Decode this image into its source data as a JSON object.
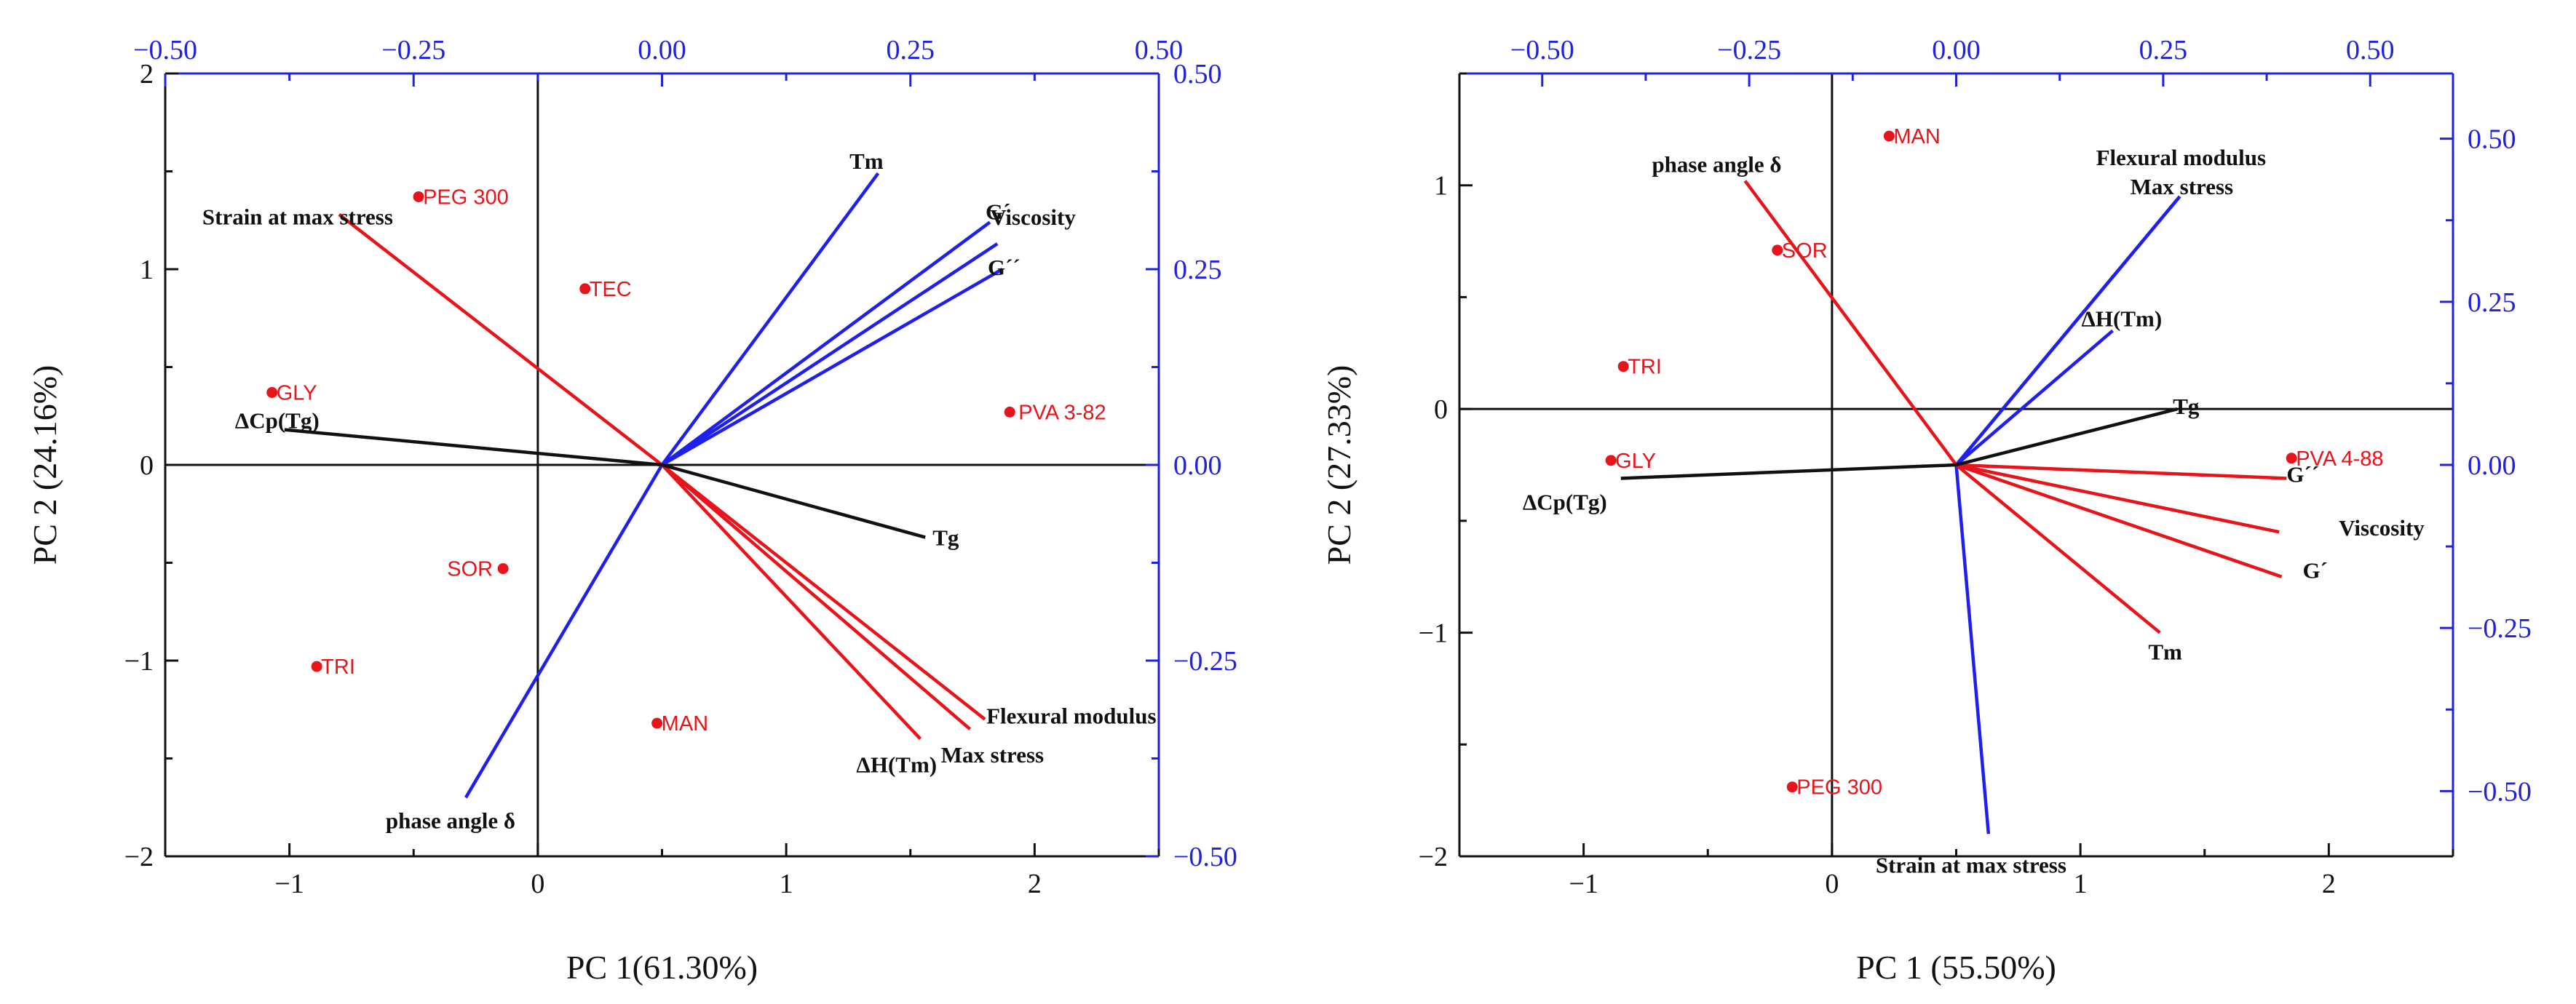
{
  "chart_data": [
    {
      "type": "scatter",
      "subtype": "pca-biplot",
      "xlabel": "PC 1(61.30%)",
      "ylabel": "PC 2 (24.16%)",
      "xlim": [
        -1.5,
        2.5
      ],
      "ylim": [
        -2,
        2
      ],
      "xticks": [
        -1,
        0,
        1,
        2
      ],
      "xtick_labels": [
        "−1",
        "0",
        "1",
        "2"
      ],
      "yticks": [
        -2,
        -1,
        0,
        1,
        2
      ],
      "ytick_labels": [
        "−2",
        "−1",
        "0",
        "1",
        "2"
      ],
      "top_axis": {
        "lim": [
          -0.5,
          0.5
        ],
        "ticks": [
          -0.5,
          -0.25,
          0,
          0.25,
          0.5
        ],
        "tick_labels": [
          "−0.50",
          "−0.25",
          "0.00",
          "0.25",
          "0.50"
        ]
      },
      "right_axis": {
        "lim": [
          -0.5,
          0.5
        ],
        "ticks": [
          -0.5,
          -0.25,
          0,
          0.25,
          0.5
        ],
        "tick_labels": [
          "−0.50",
          "−0.25",
          "0.00",
          "0.25",
          "0.50"
        ]
      },
      "vector_origin": [
        0.5,
        0.0
      ],
      "points": [
        {
          "label": "PEG 300",
          "x": -0.48,
          "y": 1.37
        },
        {
          "label": "TEC",
          "x": 0.19,
          "y": 0.9
        },
        {
          "label": "GLY",
          "x": -1.07,
          "y": 0.37
        },
        {
          "label": "PVA 3-82",
          "x": 1.9,
          "y": 0.27
        },
        {
          "label": "SOR",
          "x": -0.14,
          "y": -0.53
        },
        {
          "label": "TRI",
          "x": -0.89,
          "y": -1.03
        },
        {
          "label": "MAN",
          "x": 0.48,
          "y": -1.32
        }
      ],
      "vectors": [
        {
          "label": "Tm",
          "x": 1.37,
          "y": 1.49,
          "color": "blue"
        },
        {
          "label": "G´",
          "x": 1.82,
          "y": 1.24,
          "color": "blue"
        },
        {
          "label": "Viscosity",
          "x": 1.85,
          "y": 1.13,
          "color": "blue"
        },
        {
          "label": "G´´",
          "x": 1.87,
          "y": 1.0,
          "color": "blue"
        },
        {
          "label": "phase angle δ",
          "x": -0.29,
          "y": -1.7,
          "color": "blue"
        },
        {
          "label": "Strain at max stress",
          "x": -0.8,
          "y": 1.28,
          "color": "red"
        },
        {
          "label": "Flexural modulus",
          "x": 1.8,
          "y": -1.3,
          "color": "red"
        },
        {
          "label": "Max stress",
          "x": 1.74,
          "y": -1.35,
          "color": "red"
        },
        {
          "label": "ΔH(Tm)",
          "x": 1.54,
          "y": -1.4,
          "color": "red"
        },
        {
          "label": "ΔCp(Tg)",
          "x": -1.02,
          "y": 0.18,
          "color": "black"
        },
        {
          "label": "Tg",
          "x": 1.56,
          "y": -0.37,
          "color": "black"
        }
      ]
    },
    {
      "type": "scatter",
      "subtype": "pca-biplot",
      "xlabel": "PC 1 (55.50%)",
      "ylabel": "PC 2 (27.33%)",
      "xlim": [
        -1.5,
        2.5
      ],
      "ylim": [
        -2,
        1.5
      ],
      "xticks": [
        -1,
        0,
        1,
        2
      ],
      "xtick_labels": [
        "−1",
        "0",
        "1",
        "2"
      ],
      "yticks": [
        -2,
        -1,
        0,
        1
      ],
      "ytick_labels": [
        "−2",
        "−1",
        "0",
        "1"
      ],
      "top_axis": {
        "lim": [
          -0.6,
          0.6
        ],
        "ticks": [
          -0.5,
          -0.25,
          0,
          0.25,
          0.5
        ],
        "tick_labels": [
          "−0.50",
          "−0.25",
          "0.00",
          "0.25",
          "0.50"
        ]
      },
      "right_axis": {
        "lim": [
          -0.6,
          0.6
        ],
        "ticks": [
          -0.5,
          -0.25,
          0,
          0.25,
          0.5
        ],
        "tick_labels": [
          "−0.50",
          "−0.25",
          "0.00",
          "0.25",
          "0.50"
        ]
      },
      "vector_origin": [
        0.5,
        -0.25
      ],
      "points": [
        {
          "label": "MAN",
          "x": 0.23,
          "y": 1.22
        },
        {
          "label": "SOR",
          "x": -0.22,
          "y": 0.71
        },
        {
          "label": "TRI",
          "x": -0.84,
          "y": 0.19
        },
        {
          "label": "GLY",
          "x": -0.89,
          "y": -0.23
        },
        {
          "label": "PVA 4-88",
          "x": 1.85,
          "y": -0.22
        },
        {
          "label": "PEG 300",
          "x": -0.16,
          "y": -1.69
        }
      ],
      "vectors": [
        {
          "label": "Flexural modulus",
          "x": 1.4,
          "y": 0.95,
          "color": "blue"
        },
        {
          "label": "Max stress",
          "x": 1.4,
          "y": 0.95,
          "color": "blue"
        },
        {
          "label": "ΔH(Tm)",
          "x": 1.13,
          "y": 0.35,
          "color": "blue"
        },
        {
          "label": "Strain at max stress",
          "x": 0.63,
          "y": -1.9,
          "color": "blue"
        },
        {
          "label": "phase angle δ",
          "x": -0.35,
          "y": 1.02,
          "color": "red"
        },
        {
          "label": "G´´",
          "x": 1.83,
          "y": -0.31,
          "color": "red"
        },
        {
          "label": "Viscosity",
          "x": 1.8,
          "y": -0.55,
          "color": "red"
        },
        {
          "label": "G´",
          "x": 1.81,
          "y": -0.75,
          "color": "red"
        },
        {
          "label": "Tm",
          "x": 1.32,
          "y": -1.0,
          "color": "red"
        },
        {
          "label": "Tg",
          "x": 1.39,
          "y": 0.0,
          "color": "black"
        },
        {
          "label": "ΔCp(Tg)",
          "x": -0.85,
          "y": -0.31,
          "color": "black"
        }
      ]
    }
  ]
}
